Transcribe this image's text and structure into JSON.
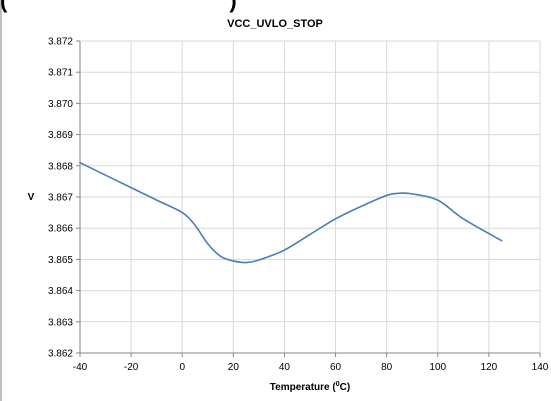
{
  "clipped_heading_fragment": "(",
  "clipped_heading_tail": ")",
  "chart_data": {
    "type": "line",
    "title": "VCC_UVLO_STOP",
    "xlabel": "Temperature (",
    "xlabel_sup": "0",
    "xlabel_unit": "C)",
    "ylabel": "V",
    "xlim": [
      -40,
      140
    ],
    "ylim": [
      3.862,
      3.872
    ],
    "x_ticks": [
      "-40",
      "-20",
      "0",
      "20",
      "40",
      "60",
      "80",
      "100",
      "120",
      "140"
    ],
    "y_ticks": [
      "3.862",
      "3.863",
      "3.864",
      "3.865",
      "3.866",
      "3.867",
      "3.868",
      "3.869",
      "3.870",
      "3.871",
      "3.872"
    ],
    "grid": true,
    "legend": "none",
    "line_color": "#4a7ebb",
    "series": [
      {
        "x": [
          -40,
          -30,
          -20,
          -10,
          0,
          5,
          10,
          15,
          20,
          25,
          30,
          40,
          50,
          60,
          70,
          80,
          85,
          90,
          100,
          110,
          125
        ],
        "y": [
          3.8681,
          3.8677,
          3.8673,
          3.8669,
          3.8665,
          3.8661,
          3.8655,
          3.8651,
          3.86495,
          3.8649,
          3.86498,
          3.8653,
          3.8658,
          3.8663,
          3.8667,
          3.86705,
          3.86712,
          3.8671,
          3.8669,
          3.8663,
          3.8656
        ]
      }
    ]
  }
}
